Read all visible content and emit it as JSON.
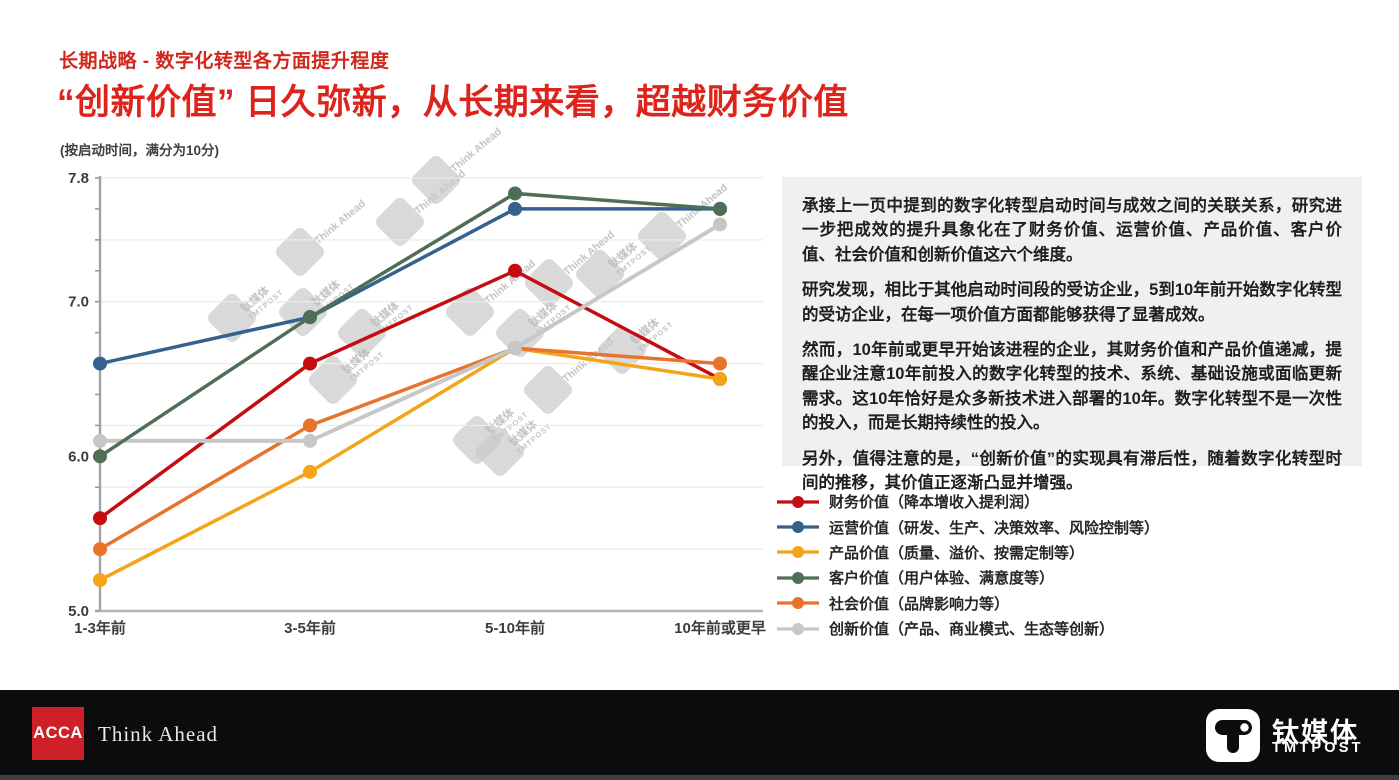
{
  "header": {
    "subtitle": "长期战略 - 数字化转型各方面提升程度",
    "title": "“创新价值” 日久弥新，从长期来看，超越财务价值",
    "note": "(按启动时间，满分为10分)"
  },
  "chart_data": {
    "type": "line",
    "categories": [
      "1-3年前",
      "3-5年前",
      "5-10年前",
      "10年前或更早"
    ],
    "series": [
      {
        "name": "财务价值",
        "label": "财务价值（降本增收入提利润）",
        "color": "#c50d11",
        "values": [
          5.6,
          6.6,
          7.2,
          6.5
        ]
      },
      {
        "name": "运营价值",
        "label": "运营价值（研发、生产、决策效率、风险控制等）",
        "color": "#35618c",
        "values": [
          6.6,
          6.9,
          7.6,
          7.6
        ]
      },
      {
        "name": "产品价值",
        "label": "产品价值（质量、溢价、按需定制等）",
        "color": "#f3a418",
        "values": [
          5.2,
          5.9,
          6.7,
          6.5
        ]
      },
      {
        "name": "客户价值",
        "label": "客户价值（用户体验、满意度等）",
        "color": "#4e6f55",
        "values": [
          6.0,
          6.9,
          7.7,
          7.6
        ]
      },
      {
        "name": "社会价值",
        "label": "社会价值（品牌影响力等）",
        "color": "#e8732d",
        "values": [
          5.4,
          6.2,
          6.7,
          6.6
        ]
      },
      {
        "name": "创新价值",
        "label": "创新价值（产品、商业模式、生态等创新）",
        "color": "#c7c7c7",
        "values": [
          6.1,
          6.1,
          6.7,
          7.5
        ]
      }
    ],
    "ylim": [
      5.0,
      7.8
    ],
    "yticks": [
      {
        "value": 7.8,
        "label": "7.8"
      },
      {
        "value": 7.0,
        "label": "7.0"
      },
      {
        "value": 6.0,
        "label": "6.0"
      },
      {
        "value": 5.0,
        "label": "5.0"
      }
    ],
    "grid": "faint horizontal gridlines every 0.4",
    "legend_position": "right-bottom"
  },
  "description": {
    "paragraphs": [
      "承接上一页中提到的数字化转型启动时间与成效之间的关联关系，研究进一步把成效的提升具象化在了财务价值、运营价值、产品价值、客户价值、社会价值和创新价值这六个维度。",
      "研究发现，相比于其他启动时间段的受访企业，5到10年前开始数字化转型的受访企业，在每一项价值方面都能够获得了显著成效。",
      "然而，10年前或更早开始该进程的企业，其财务价值和产品价值递减，提醒企业注意10年前投入的数字化转型的技术、系统、基础设施或面临更新需求。这10年恰好是众多新技术进入部署的10年。数字化转型不是一次性的投入，而是长期持续性的投入。",
      "另外，值得注意的是，“创新价值”的实现具有滞后性，随着数字化转型时间的推移，其价值正逐渐凸显并增强。"
    ]
  },
  "watermark": {
    "tmt_line1": "钛媒体",
    "tmt_line2": "TMTPOST",
    "think": "Think Ahead"
  },
  "footer": {
    "acca_logo": "ACCA",
    "acca_tagline": "Think Ahead",
    "tmt_cn": "钛媒体",
    "tmt_en": "TMTPOST"
  },
  "colors": {
    "accent_red": "#dc241c",
    "panel_bg": "#f0f0ef",
    "footer_bg": "#0c0c0c"
  }
}
